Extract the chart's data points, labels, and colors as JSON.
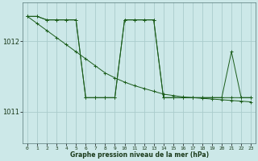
{
  "bg_color": "#cce8e8",
  "grid_color": "#aacccc",
  "line_color": "#1a5c1a",
  "xlabel": "Graphe pression niveau de la mer (hPa)",
  "ylim": [
    1010.55,
    1012.55
  ],
  "xlim": [
    -0.5,
    23.5
  ],
  "yticks": [
    1011,
    1012
  ],
  "xticks": [
    0,
    1,
    2,
    3,
    4,
    5,
    6,
    7,
    8,
    9,
    10,
    11,
    12,
    13,
    14,
    15,
    16,
    17,
    18,
    19,
    20,
    21,
    22,
    23
  ],
  "series": {
    "s1_x": [
      0,
      1,
      2,
      3,
      4,
      5,
      6,
      7,
      8,
      9,
      10,
      11,
      12,
      13,
      14,
      15,
      16,
      17,
      18,
      19,
      20,
      21,
      22,
      23
    ],
    "s1_y": [
      1012.35,
      1012.35,
      1012.3,
      1012.3,
      1012.3,
      1012.3,
      1011.2,
      1011.2,
      1011.2,
      1011.2,
      1012.3,
      1012.3,
      1012.3,
      1012.3,
      1011.2,
      1011.2,
      1011.2,
      1011.2,
      1011.2,
      1011.2,
      1011.2,
      1011.85,
      1011.2,
      1011.2
    ],
    "s2_x": [
      0,
      1,
      2,
      3,
      4,
      5,
      6,
      7,
      8,
      9,
      10,
      11,
      12,
      13,
      14,
      15,
      16,
      17,
      18,
      19,
      20,
      21,
      22,
      23
    ],
    "s2_y": [
      1012.35,
      1012.35,
      1012.3,
      1012.3,
      1012.3,
      1012.3,
      1011.2,
      1011.2,
      1011.2,
      1011.2,
      1012.3,
      1012.3,
      1012.3,
      1012.3,
      1011.2,
      1011.2,
      1011.2,
      1011.2,
      1011.2,
      1011.2,
      1011.2,
      1011.2,
      1011.2,
      1011.2
    ],
    "s3_x": [
      0,
      1,
      2,
      3,
      4,
      5,
      6,
      7,
      8,
      9,
      10,
      11,
      12,
      13,
      14,
      15,
      16,
      17,
      18,
      19,
      20,
      21,
      22,
      23
    ],
    "s3_y": [
      1012.35,
      1012.25,
      1012.15,
      1012.05,
      1011.95,
      1011.85,
      1011.75,
      1011.65,
      1011.55,
      1011.48,
      1011.42,
      1011.37,
      1011.33,
      1011.29,
      1011.25,
      1011.23,
      1011.21,
      1011.2,
      1011.19,
      1011.18,
      1011.17,
      1011.16,
      1011.15,
      1011.14
    ]
  }
}
